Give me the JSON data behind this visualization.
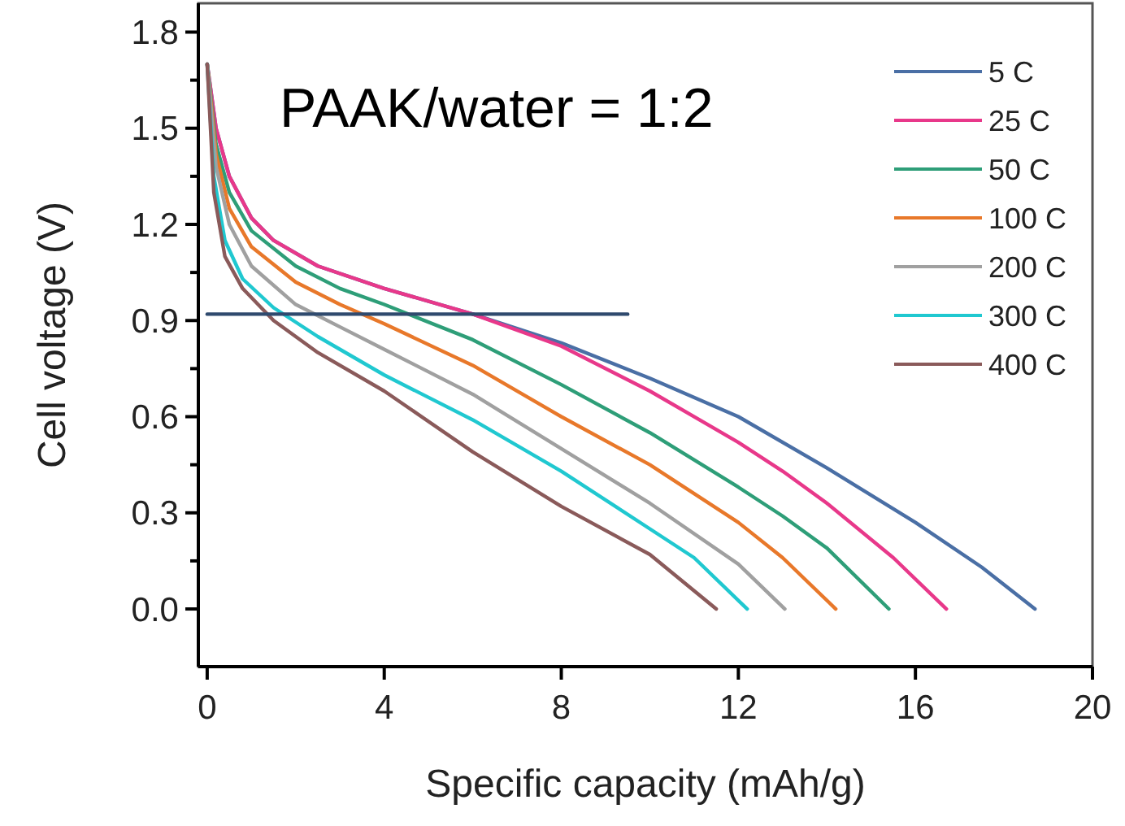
{
  "chart_data": {
    "type": "line",
    "xlabel": "Specific capacity (mAh/g)",
    "ylabel": "Cell voltage (V)",
    "annotations": [
      "PAAK/water = 1:2"
    ],
    "xlim": [
      -0.2,
      20
    ],
    "ylim": [
      -0.18,
      1.89
    ],
    "xticks": [
      0,
      4,
      8,
      12,
      16,
      20
    ],
    "yticks": [
      {
        "value": 0,
        "label": "0.0"
      },
      {
        "value": 0.15,
        "label": null
      },
      {
        "value": 0.3,
        "label": "0.3"
      },
      {
        "value": 0.45,
        "label": null
      },
      {
        "value": 0.6,
        "label": "0.6"
      },
      {
        "value": 0.75,
        "label": null
      },
      0.9,
      {
        "value": 1.05,
        "label": null
      },
      {
        "value": 1.2,
        "label": "1.2"
      },
      {
        "value": 1.35,
        "label": null
      },
      {
        "value": 1.5,
        "label": "1.5"
      },
      {
        "value": 1.65,
        "label": null
      },
      {
        "value": 1.8,
        "label": "1.8"
      }
    ],
    "legend": "top right",
    "grid": false,
    "marker": "none",
    "line_style": "solid",
    "series": [
      {
        "name": "5 C",
        "color": "#4a6fa5",
        "x": [
          0,
          0.2,
          0.5,
          1,
          1.5,
          2.5,
          4,
          6,
          8,
          10,
          12,
          14,
          16,
          17.5,
          18.7
        ],
        "values": [
          1.7,
          1.5,
          1.35,
          1.22,
          1.15,
          1.07,
          1.0,
          0.92,
          0.83,
          0.72,
          0.6,
          0.44,
          0.27,
          0.13,
          0
        ]
      },
      {
        "name": "25 C",
        "color": "#e8388a",
        "x": [
          0,
          0.2,
          0.5,
          1,
          1.5,
          2.5,
          4,
          6,
          8,
          10,
          12,
          13,
          14,
          15.5,
          16.7
        ],
        "values": [
          1.7,
          1.5,
          1.35,
          1.22,
          1.15,
          1.07,
          1.0,
          0.92,
          0.82,
          0.68,
          0.52,
          0.43,
          0.33,
          0.16,
          0
        ]
      },
      {
        "name": "50 C",
        "color": "#2e9e78",
        "x": [
          0,
          0.2,
          0.5,
          1,
          2,
          3,
          4,
          6,
          8,
          10,
          12,
          13,
          14,
          15.4
        ],
        "values": [
          1.7,
          1.45,
          1.3,
          1.18,
          1.07,
          1.0,
          0.95,
          0.84,
          0.7,
          0.55,
          0.38,
          0.29,
          0.19,
          0
        ]
      },
      {
        "name": "100 C",
        "color": "#e8782a",
        "x": [
          0,
          0.2,
          0.5,
          1,
          2,
          3,
          4,
          6,
          8,
          10,
          12,
          13,
          14.2
        ],
        "values": [
          1.7,
          1.42,
          1.25,
          1.13,
          1.02,
          0.95,
          0.89,
          0.76,
          0.6,
          0.45,
          0.27,
          0.16,
          0
        ]
      },
      {
        "name": "200 C",
        "color": "#a0a0a0",
        "x": [
          0,
          0.2,
          0.5,
          1,
          2,
          3,
          4,
          6,
          8,
          10,
          12,
          13.05
        ],
        "values": [
          1.7,
          1.38,
          1.2,
          1.07,
          0.95,
          0.88,
          0.81,
          0.67,
          0.5,
          0.33,
          0.14,
          0
        ]
      },
      {
        "name": "300 C",
        "color": "#20c8d0",
        "x": [
          0,
          0.15,
          0.4,
          0.8,
          1.5,
          2.5,
          4,
          6,
          8,
          10,
          11,
          12.2
        ],
        "values": [
          1.7,
          1.35,
          1.15,
          1.03,
          0.94,
          0.85,
          0.73,
          0.59,
          0.43,
          0.25,
          0.16,
          0
        ]
      },
      {
        "name": "400 C",
        "color": "#8a5a5a",
        "x": [
          0,
          0.15,
          0.4,
          0.8,
          1.5,
          2.5,
          4,
          6,
          8,
          10,
          11.5
        ],
        "values": [
          1.7,
          1.3,
          1.1,
          1.0,
          0.9,
          0.8,
          0.68,
          0.49,
          0.32,
          0.17,
          0
        ]
      },
      {
        "color": "#2f4a6e",
        "x": [
          0,
          9.5
        ],
        "values": [
          0.92,
          0.92
        ]
      }
    ]
  }
}
